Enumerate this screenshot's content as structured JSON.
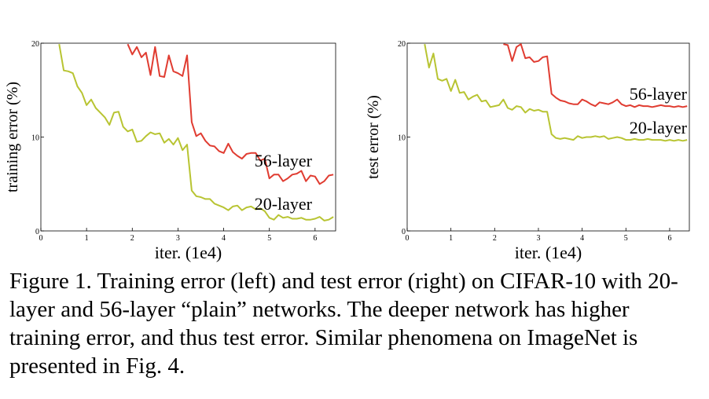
{
  "chart_data": [
    {
      "type": "line",
      "xlabel": "iter. (1e4)",
      "ylabel": "training error (%)",
      "xlim": [
        0,
        6.45
      ],
      "ylim": [
        0,
        20
      ],
      "xticks": [
        "0",
        "1",
        "2",
        "3",
        "4",
        "5",
        "6"
      ],
      "yticks": [
        "0",
        "10",
        "20"
      ],
      "grid": false,
      "series": [
        {
          "name": "56-layer",
          "color": "#e03c31",
          "x": [
            1.9,
            2.0,
            2.1,
            2.2,
            2.3,
            2.4,
            2.5,
            2.6,
            2.7,
            2.8,
            2.9,
            3.0,
            3.1,
            3.2,
            3.3,
            3.4,
            3.5,
            3.6,
            3.7,
            3.8,
            3.9,
            4.0,
            4.1,
            4.2,
            4.3,
            4.4,
            4.5,
            4.6,
            4.7,
            4.8,
            4.9,
            5.0,
            5.1,
            5.2,
            5.3,
            5.4,
            5.5,
            5.6,
            5.7,
            5.8,
            5.9,
            6.0,
            6.1,
            6.2,
            6.3,
            6.4
          ],
          "y": [
            19.9,
            18.8,
            19.6,
            18.5,
            19.0,
            16.6,
            19.6,
            16.5,
            16.4,
            18.7,
            17.0,
            16.8,
            16.5,
            18.7,
            11.6,
            10.1,
            10.4,
            9.6,
            9.1,
            9.0,
            8.5,
            8.3,
            9.3,
            8.4,
            8.0,
            7.7,
            8.2,
            8.3,
            8.3,
            7.5,
            7.7,
            5.6,
            6.0,
            6.0,
            5.3,
            5.6,
            6.0,
            6.1,
            6.4,
            5.3,
            5.9,
            5.8,
            5.0,
            5.3,
            5.9,
            6.0
          ]
        },
        {
          "name": "20-layer",
          "color": "#b8c432",
          "x": [
            0.4,
            0.5,
            0.6,
            0.7,
            0.8,
            0.9,
            1.0,
            1.1,
            1.2,
            1.3,
            1.4,
            1.5,
            1.6,
            1.7,
            1.8,
            1.9,
            2.0,
            2.1,
            2.2,
            2.3,
            2.4,
            2.5,
            2.6,
            2.7,
            2.8,
            2.9,
            3.0,
            3.1,
            3.2,
            3.3,
            3.4,
            3.5,
            3.6,
            3.7,
            3.8,
            3.9,
            4.0,
            4.1,
            4.2,
            4.3,
            4.4,
            4.5,
            4.6,
            4.7,
            4.8,
            4.9,
            5.0,
            5.1,
            5.2,
            5.3,
            5.4,
            5.5,
            5.6,
            5.7,
            5.8,
            5.9,
            6.0,
            6.1,
            6.2,
            6.3,
            6.4
          ],
          "y": [
            19.9,
            17.1,
            17.0,
            16.8,
            15.4,
            14.7,
            13.4,
            14.0,
            13.1,
            12.6,
            12.1,
            11.3,
            12.6,
            12.7,
            11.1,
            10.6,
            10.8,
            9.5,
            9.6,
            10.1,
            10.5,
            10.3,
            10.4,
            9.4,
            9.8,
            9.2,
            9.9,
            8.6,
            9.2,
            4.3,
            3.7,
            3.6,
            3.4,
            3.4,
            2.9,
            2.7,
            2.5,
            2.2,
            2.6,
            2.7,
            2.2,
            2.5,
            2.6,
            2.3,
            2.4,
            2.1,
            1.4,
            1.2,
            1.7,
            1.4,
            1.5,
            1.3,
            1.3,
            1.4,
            1.2,
            1.2,
            1.3,
            1.5,
            1.1,
            1.2,
            1.5
          ]
        }
      ]
    },
    {
      "type": "line",
      "xlabel": "iter. (1e4)",
      "ylabel": "test error (%)",
      "xlim": [
        0,
        6.45
      ],
      "ylim": [
        0,
        20
      ],
      "xticks": [
        "0",
        "1",
        "2",
        "3",
        "4",
        "5",
        "6"
      ],
      "yticks": [
        "0",
        "10",
        "20"
      ],
      "grid": false,
      "series": [
        {
          "name": "56-layer",
          "color": "#e03c31",
          "x": [
            2.2,
            2.3,
            2.4,
            2.5,
            2.6,
            2.7,
            2.8,
            2.9,
            3.0,
            3.1,
            3.2,
            3.3,
            3.4,
            3.5,
            3.6,
            3.7,
            3.8,
            3.9,
            4.0,
            4.1,
            4.2,
            4.3,
            4.4,
            4.5,
            4.6,
            4.7,
            4.8,
            4.9,
            5.0,
            5.1,
            5.2,
            5.3,
            5.4,
            5.5,
            5.6,
            5.7,
            5.8,
            5.9,
            6.0,
            6.1,
            6.2,
            6.3,
            6.4
          ],
          "y": [
            19.9,
            19.8,
            18.1,
            19.6,
            19.9,
            18.4,
            18.5,
            18.0,
            18.1,
            18.5,
            18.6,
            14.6,
            14.2,
            13.9,
            13.8,
            13.6,
            13.5,
            13.5,
            14.0,
            13.8,
            13.5,
            13.3,
            13.7,
            13.6,
            13.5,
            13.7,
            14.0,
            13.5,
            13.3,
            13.4,
            13.2,
            13.4,
            13.3,
            13.3,
            13.2,
            13.3,
            13.4,
            13.3,
            13.3,
            13.2,
            13.3,
            13.2,
            13.3
          ]
        },
        {
          "name": "20-layer",
          "color": "#b8c432",
          "x": [
            0.4,
            0.5,
            0.6,
            0.7,
            0.8,
            0.9,
            1.0,
            1.1,
            1.2,
            1.3,
            1.4,
            1.5,
            1.6,
            1.7,
            1.8,
            1.9,
            2.0,
            2.1,
            2.2,
            2.3,
            2.4,
            2.5,
            2.6,
            2.7,
            2.8,
            2.9,
            3.0,
            3.1,
            3.2,
            3.3,
            3.4,
            3.5,
            3.6,
            3.7,
            3.8,
            3.9,
            4.0,
            4.1,
            4.2,
            4.3,
            4.4,
            4.5,
            4.6,
            4.7,
            4.8,
            4.9,
            5.0,
            5.1,
            5.2,
            5.3,
            5.4,
            5.5,
            5.6,
            5.7,
            5.8,
            5.9,
            6.0,
            6.1,
            6.2,
            6.3,
            6.4
          ],
          "y": [
            19.9,
            17.4,
            18.9,
            16.2,
            16.0,
            16.2,
            14.9,
            16.1,
            14.7,
            14.8,
            14.0,
            14.3,
            14.5,
            13.8,
            13.9,
            13.2,
            13.3,
            13.4,
            14.0,
            13.1,
            12.9,
            13.3,
            13.2,
            12.6,
            13.0,
            12.8,
            12.9,
            12.7,
            12.7,
            10.3,
            9.9,
            9.8,
            9.9,
            9.8,
            9.7,
            10.1,
            9.9,
            10.0,
            10.0,
            10.1,
            10.0,
            10.1,
            9.8,
            9.9,
            10.0,
            9.9,
            9.7,
            9.7,
            9.8,
            9.7,
            9.7,
            9.8,
            9.7,
            9.7,
            9.7,
            9.6,
            9.7,
            9.6,
            9.7,
            9.6,
            9.7
          ]
        }
      ]
    }
  ],
  "caption": "Figure 1. Training error (left) and test error (right) on CIFAR-10 with 20-layer and 56-layer “plain” networks. The deeper network has higher training error, and thus test error. Similar phenomena on ImageNet is presented in Fig. 4."
}
